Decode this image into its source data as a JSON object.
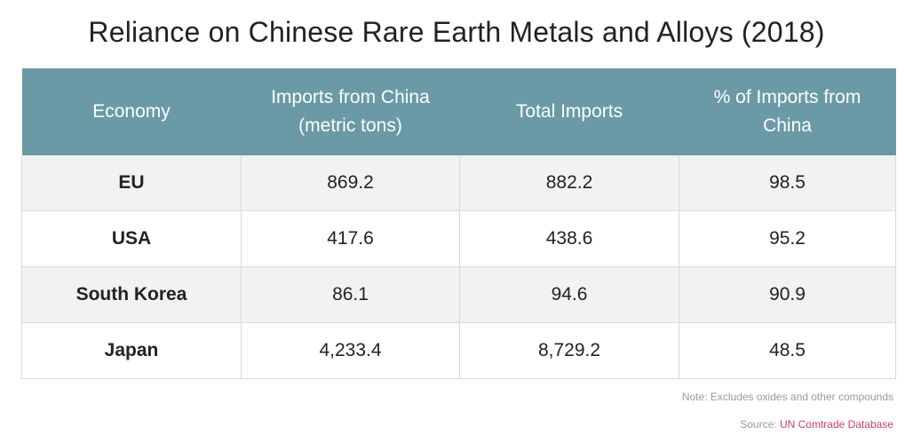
{
  "title": "Reliance on Chinese Rare Earth Metals and Alloys (2018)",
  "colors": {
    "header_bg": "#6a9aa6",
    "header_text": "#ffffff",
    "row_alt_bg": "#f2f2f2",
    "link": "#d23c6b"
  },
  "chart_data": {
    "type": "table",
    "title": "Reliance on Chinese Rare Earth Metals and Alloys (2018)",
    "columns": [
      "Economy",
      "Imports from China (metric tons)",
      "Total Imports",
      "% of Imports from China"
    ],
    "rows": [
      [
        "EU",
        "869.2",
        "882.2",
        "98.5"
      ],
      [
        "USA",
        "417.6",
        "438.6",
        "95.2"
      ],
      [
        "South Korea",
        "86.1",
        "94.6",
        "90.9"
      ],
      [
        "Japan",
        "4,233.4",
        "8,729.2",
        "48.5"
      ]
    ]
  },
  "note": "Note: Excludes oxides and other compounds",
  "source": {
    "label": "Source: ",
    "link_text": "UN Comtrade Database"
  }
}
